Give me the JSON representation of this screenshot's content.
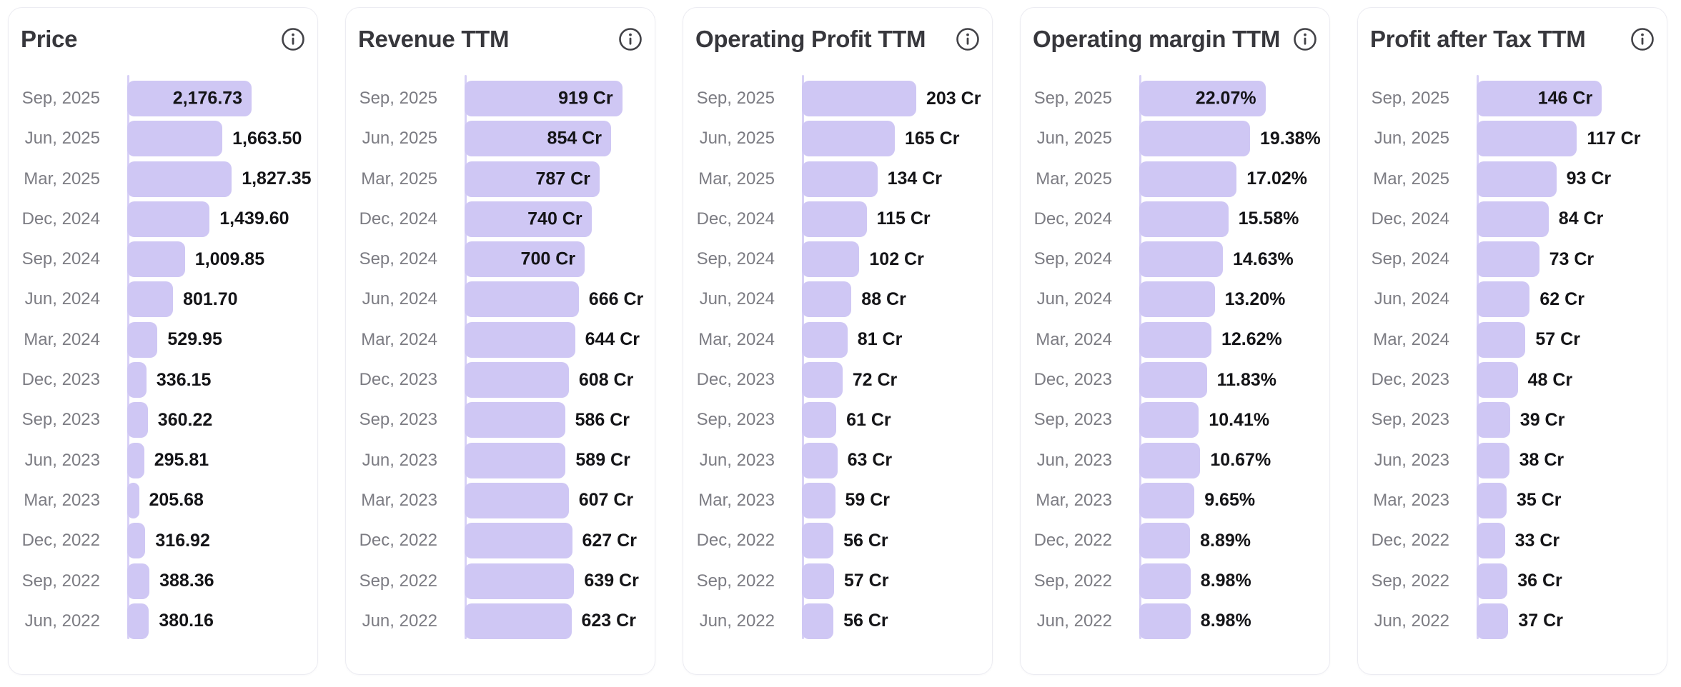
{
  "style": {
    "bar_color": "#cfc7f4",
    "axis_line_color": "#d7d0f6",
    "card_border_color": "#ececf2",
    "title_color": "#37373c",
    "category_color": "#7c7c83",
    "value_color": "#141417",
    "info_icon": "info-circle"
  },
  "chart_data": [
    {
      "type": "bar",
      "orientation": "horizontal",
      "title": "Price",
      "legend": "none",
      "grid": "off",
      "axis_max": 3300,
      "categories": [
        "Sep, 2025",
        "Jun, 2025",
        "Mar, 2025",
        "Dec, 2024",
        "Sep, 2024",
        "Jun, 2024",
        "Mar, 2024",
        "Dec, 2023",
        "Sep, 2023",
        "Jun, 2023",
        "Mar, 2023",
        "Dec, 2022",
        "Sep, 2022",
        "Jun, 2022"
      ],
      "values": [
        2176.73,
        1663.5,
        1827.35,
        1439.6,
        1009.85,
        801.7,
        529.95,
        336.15,
        360.22,
        295.81,
        205.68,
        316.92,
        388.36,
        380.16
      ],
      "value_labels": [
        "2,176.73",
        "1,663.50",
        "1,827.35",
        "1,439.60",
        "1,009.85",
        "801.70",
        "529.95",
        "336.15",
        "360.22",
        "295.81",
        "205.68",
        "316.92",
        "388.36",
        "380.16"
      ]
    },
    {
      "type": "bar",
      "orientation": "horizontal",
      "title": "Revenue TTM",
      "legend": "none",
      "grid": "off",
      "axis_max": 1100,
      "categories": [
        "Sep, 2025",
        "Jun, 2025",
        "Mar, 2025",
        "Dec, 2024",
        "Sep, 2024",
        "Jun, 2024",
        "Mar, 2024",
        "Dec, 2023",
        "Sep, 2023",
        "Jun, 2023",
        "Mar, 2023",
        "Dec, 2022",
        "Sep, 2022",
        "Jun, 2022"
      ],
      "values": [
        919,
        854,
        787,
        740,
        700,
        666,
        644,
        608,
        586,
        589,
        607,
        627,
        639,
        623
      ],
      "value_labels": [
        "919 Cr",
        "854 Cr",
        "787 Cr",
        "740 Cr",
        "700 Cr",
        "666 Cr",
        "644 Cr",
        "608 Cr",
        "586 Cr",
        "589 Cr",
        "607 Cr",
        "627 Cr",
        "639 Cr",
        "623 Cr"
      ]
    },
    {
      "type": "bar",
      "orientation": "horizontal",
      "title": "Operating Profit TTM",
      "legend": "none",
      "grid": "off",
      "axis_max": 335,
      "categories": [
        "Sep, 2025",
        "Jun, 2025",
        "Mar, 2025",
        "Dec, 2024",
        "Sep, 2024",
        "Jun, 2024",
        "Mar, 2024",
        "Dec, 2023",
        "Sep, 2023",
        "Jun, 2023",
        "Mar, 2023",
        "Dec, 2022",
        "Sep, 2022",
        "Jun, 2022"
      ],
      "values": [
        203,
        165,
        134,
        115,
        102,
        88,
        81,
        72,
        61,
        63,
        59,
        56,
        57,
        56
      ],
      "value_labels": [
        "203 Cr",
        "165 Cr",
        "134 Cr",
        "115 Cr",
        "102 Cr",
        "88 Cr",
        "81 Cr",
        "72 Cr",
        "61 Cr",
        "63 Cr",
        "59 Cr",
        "56 Cr",
        "57 Cr",
        "56 Cr"
      ]
    },
    {
      "type": "bar",
      "orientation": "horizontal",
      "title": "Operating margin TTM",
      "legend": "none",
      "grid": "off",
      "axis_max": 33,
      "categories": [
        "Sep, 2025",
        "Jun, 2025",
        "Mar, 2025",
        "Dec, 2024",
        "Sep, 2024",
        "Jun, 2024",
        "Mar, 2024",
        "Dec, 2023",
        "Sep, 2023",
        "Jun, 2023",
        "Mar, 2023",
        "Dec, 2022",
        "Sep, 2022",
        "Jun, 2022"
      ],
      "values": [
        22.07,
        19.38,
        17.02,
        15.58,
        14.63,
        13.2,
        12.62,
        11.83,
        10.41,
        10.67,
        9.65,
        8.89,
        8.98,
        8.98
      ],
      "value_labels": [
        "22.07%",
        "19.38%",
        "17.02%",
        "15.58%",
        "14.63%",
        "13.20%",
        "12.62%",
        "11.83%",
        "10.41%",
        "10.67%",
        "9.65%",
        "8.89%",
        "8.98%",
        "8.98%"
      ]
    },
    {
      "type": "bar",
      "orientation": "horizontal",
      "title": "Profit after Tax TTM",
      "legend": "none",
      "grid": "off",
      "axis_max": 220,
      "categories": [
        "Sep, 2025",
        "Jun, 2025",
        "Mar, 2025",
        "Dec, 2024",
        "Sep, 2024",
        "Jun, 2024",
        "Mar, 2024",
        "Dec, 2023",
        "Sep, 2023",
        "Jun, 2023",
        "Mar, 2023",
        "Dec, 2022",
        "Sep, 2022",
        "Jun, 2022"
      ],
      "values": [
        146,
        117,
        93,
        84,
        73,
        62,
        57,
        48,
        39,
        38,
        35,
        33,
        36,
        37
      ],
      "value_labels": [
        "146 Cr",
        "117 Cr",
        "93 Cr",
        "84 Cr",
        "73 Cr",
        "62 Cr",
        "57 Cr",
        "48 Cr",
        "39 Cr",
        "38 Cr",
        "35 Cr",
        "33 Cr",
        "36 Cr",
        "37 Cr"
      ]
    }
  ]
}
